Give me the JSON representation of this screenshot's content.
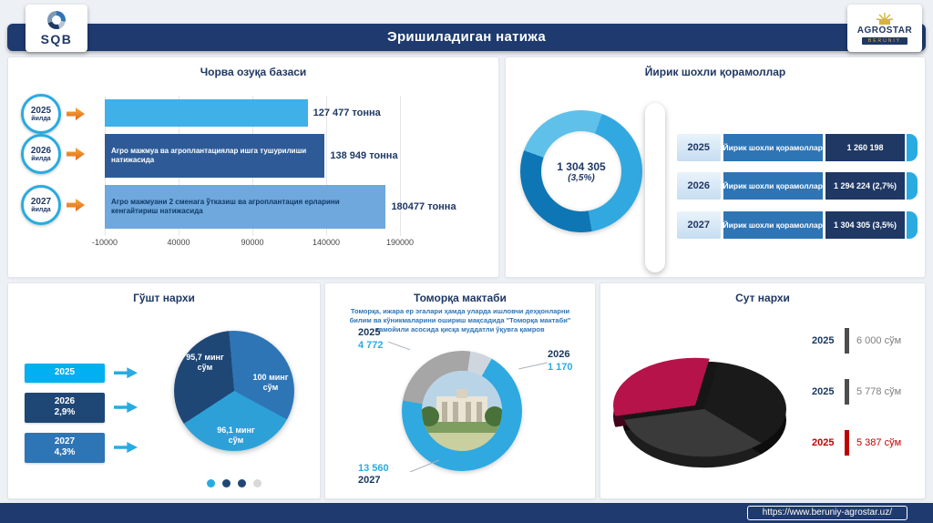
{
  "page": {
    "title": "Эришиладиган натижа",
    "url": "https://www.beruniy-agrostar.uz/"
  },
  "logos": {
    "sqb": "SQB",
    "agrostar": "AGROSTAR",
    "agrostar_sub": "BERUNIY"
  },
  "feed": {
    "year_badges": [
      {
        "year": "2025",
        "suffix": "йилда"
      },
      {
        "year": "2026",
        "suffix": "йилда"
      },
      {
        "year": "2027",
        "suffix": "йилда"
      }
    ]
  },
  "colors": {
    "navy": "#1f3864",
    "blue": "#2e75b6",
    "cyan": "#29abe2",
    "accent_cyan": "#00b0f0",
    "orange": "#e2671b",
    "red": "#c00000",
    "gray": "#a6a6a6"
  },
  "chart_data": [
    {
      "id": "feed_bars",
      "type": "bar",
      "orientation": "horizontal",
      "title": "Чорва озуқа базаси",
      "categories": [
        "2025",
        "2026",
        "2027"
      ],
      "values": [
        127477,
        138949,
        180477
      ],
      "value_labels": [
        "127 477 тонна",
        "138 949 тонна",
        "180477 тонна"
      ],
      "annotations": [
        "",
        "Агро мажмуа ва агроплантациялар  ишга тушурилиши натижасида",
        "Агро мажмуани 2 сменага ўтказиш ва агроплантация ерларини кенгайтириш натижасида"
      ],
      "xlim": [
        -10000,
        190000
      ],
      "x_ticks": [
        "-10000",
        "40000",
        "90000",
        "140000",
        "190000"
      ],
      "bar_colors": [
        "#3fb0e8",
        "#2e5b97",
        "#6fa8dc"
      ],
      "xlabel": "",
      "ylabel": "",
      "grid": true
    },
    {
      "id": "cattle_donut",
      "type": "donut",
      "title": "Йирик шохли қорамоллар",
      "center_label": "1 304 305",
      "center_sublabel": "(3,5%)",
      "ring_segments": [
        {
          "value": 150,
          "color": "#31a8e0"
        },
        {
          "value": 120,
          "color": "#0e76b4"
        },
        {
          "value": 90,
          "color": "#5fc0ea"
        }
      ],
      "table": {
        "rows": [
          {
            "year": "2025",
            "label": "Йирик шохли қорамоллар",
            "value": "1 260 198"
          },
          {
            "year": "2026",
            "label": "Йирик шохли қорамоллар",
            "value": "1 294 224 (2,7%)"
          },
          {
            "year": "2027",
            "label": "Йирик шохли қорамоллар",
            "value": "1 304 305 (3,5%)"
          }
        ]
      }
    },
    {
      "id": "meat_pie",
      "type": "pie",
      "title": "Гўшт нархи",
      "start_angle": -5,
      "slices": [
        {
          "label": "100 минг сўм",
          "value": 100,
          "color": "#2e75b6"
        },
        {
          "label": "96,1 минг сўм",
          "value": 96.1,
          "color": "#2da0d8"
        },
        {
          "label": "95,7 минг сўм",
          "value": 95.7,
          "color": "#1f4776"
        }
      ],
      "year_boxes": [
        {
          "year": "2025",
          "pct": "",
          "color": "#00b0f0"
        },
        {
          "year": "2026",
          "pct": "2,9%",
          "color": "#1f4776"
        },
        {
          "year": "2027",
          "pct": "4,3%",
          "color": "#2e75b6"
        }
      ],
      "pagination_dots": [
        "#29abe2",
        "#1f4776",
        "#1f4776",
        "#d9d9d9"
      ]
    },
    {
      "id": "tomorqa_donut",
      "type": "donut",
      "title": "Томорқа мактаби",
      "subtitle": "Томорқа, ижара ер эгалари ҳамда уларда ишловчи деҳқонларни билим ва кўникмаларини ошириш мақсадида \"Томорқа мактаби\" тамойили асосида қисқа муддатли ўқувга қамров",
      "start_angle": -80,
      "segments": [
        {
          "year": "2025",
          "value": 4772,
          "display": "4 772",
          "color": "#a6a6a6"
        },
        {
          "year": "2026",
          "value": 1170,
          "display": "1 170",
          "color": "#cfd6dd"
        },
        {
          "year": "2027",
          "value": 13560,
          "display": "13 560",
          "color": "#2fa9e0"
        }
      ],
      "center_image": "school-building-photo"
    },
    {
      "id": "milk_pie",
      "type": "pie",
      "style": "3d",
      "title": "Сут нархи",
      "start_angle": 10,
      "slices": [
        {
          "value": 6000,
          "color": "#1a1a1a"
        },
        {
          "value": 5778,
          "color": "#3a3a3a"
        },
        {
          "value": 5387,
          "color": "#b5134a"
        }
      ],
      "rows": [
        {
          "year": "2025",
          "value": "6 000 сўм",
          "highlight": false
        },
        {
          "year": "2025",
          "value": "5 778 сўм",
          "highlight": false
        },
        {
          "year": "2025",
          "value": "5 387 сўм",
          "highlight": true
        }
      ]
    }
  ]
}
